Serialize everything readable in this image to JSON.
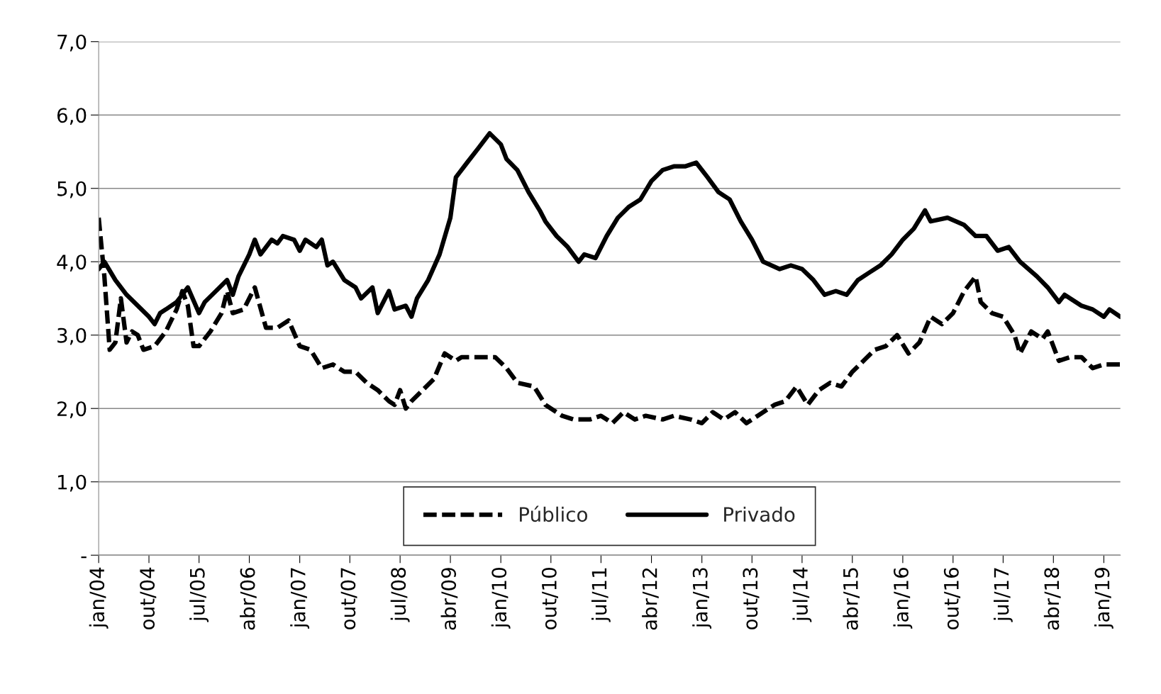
{
  "chart_data": {
    "type": "line",
    "ylim": [
      0,
      7
    ],
    "yticks": [
      {
        "value": 0,
        "label": "-"
      },
      {
        "value": 1,
        "label": "1,0"
      },
      {
        "value": 2,
        "label": "2,0"
      },
      {
        "value": 3,
        "label": "3,0"
      },
      {
        "value": 4,
        "label": "4,0"
      },
      {
        "value": 5,
        "label": "5,0"
      },
      {
        "value": 6,
        "label": "6,0"
      },
      {
        "value": 7,
        "label": "7,0"
      }
    ],
    "xlim": [
      "2004-01",
      "2019-04"
    ],
    "xticks": [
      {
        "value": "2004-01",
        "label": "jan/04"
      },
      {
        "value": "2004-10",
        "label": "out/04"
      },
      {
        "value": "2005-07",
        "label": "jul/05"
      },
      {
        "value": "2006-04",
        "label": "abr/06"
      },
      {
        "value": "2007-01",
        "label": "jan/07"
      },
      {
        "value": "2007-10",
        "label": "out/07"
      },
      {
        "value": "2008-07",
        "label": "jul/08"
      },
      {
        "value": "2009-04",
        "label": "abr/09"
      },
      {
        "value": "2010-01",
        "label": "jan/10"
      },
      {
        "value": "2010-10",
        "label": "out/10"
      },
      {
        "value": "2011-07",
        "label": "jul/11"
      },
      {
        "value": "2012-04",
        "label": "abr/12"
      },
      {
        "value": "2013-01",
        "label": "jan/13"
      },
      {
        "value": "2013-10",
        "label": "out/13"
      },
      {
        "value": "2014-07",
        "label": "jul/14"
      },
      {
        "value": "2015-04",
        "label": "abr/15"
      },
      {
        "value": "2016-01",
        "label": "jan/16"
      },
      {
        "value": "2016-10",
        "label": "out/16"
      },
      {
        "value": "2017-07",
        "label": "jul/17"
      },
      {
        "value": "2018-04",
        "label": "abr/18"
      },
      {
        "value": "2019-01",
        "label": "jan/19"
      }
    ],
    "grid": "y",
    "legend": "bottom",
    "marker": "none",
    "series": [
      {
        "name": "Público",
        "color": "#000000",
        "line_style": "dashed",
        "x": [
          "2004-01",
          "2004-02",
          "2004-03",
          "2004-04",
          "2004-05",
          "2004-06",
          "2004-07",
          "2004-08",
          "2004-09",
          "2004-11",
          "2005-01",
          "2005-03",
          "2005-04",
          "2005-05",
          "2005-06",
          "2005-07",
          "2005-09",
          "2005-11",
          "2005-12",
          "2006-01",
          "2006-03",
          "2006-05",
          "2006-07",
          "2006-09",
          "2006-11",
          "2007-01",
          "2007-03",
          "2007-05",
          "2007-07",
          "2007-09",
          "2007-11",
          "2008-01",
          "2008-03",
          "2008-05",
          "2008-06",
          "2008-07",
          "2008-08",
          "2008-09",
          "2008-11",
          "2009-01",
          "2009-03",
          "2009-05",
          "2009-06",
          "2009-09",
          "2009-12",
          "2010-02",
          "2010-04",
          "2010-07",
          "2010-09",
          "2010-12",
          "2011-02",
          "2011-05",
          "2011-07",
          "2011-09",
          "2011-11",
          "2012-01",
          "2012-03",
          "2012-06",
          "2012-08",
          "2012-11",
          "2013-01",
          "2013-03",
          "2013-05",
          "2013-07",
          "2013-09",
          "2013-11",
          "2014-02",
          "2014-04",
          "2014-06",
          "2014-08",
          "2014-10",
          "2014-12",
          "2015-02",
          "2015-04",
          "2015-06",
          "2015-08",
          "2015-10",
          "2015-12",
          "2016-02",
          "2016-04",
          "2016-06",
          "2016-08",
          "2016-10",
          "2016-12",
          "2017-02",
          "2017-03",
          "2017-05",
          "2017-07",
          "2017-09",
          "2017-10",
          "2017-12",
          "2018-02",
          "2018-03",
          "2018-05",
          "2018-07",
          "2018-09",
          "2018-11",
          "2019-01",
          "2019-04"
        ],
        "values": [
          4.6,
          3.8,
          2.8,
          2.9,
          3.5,
          2.9,
          3.05,
          3.0,
          2.8,
          2.85,
          3.05,
          3.35,
          3.6,
          3.4,
          2.85,
          2.85,
          3.05,
          3.3,
          3.6,
          3.3,
          3.35,
          3.65,
          3.1,
          3.1,
          3.2,
          2.85,
          2.8,
          2.55,
          2.6,
          2.5,
          2.5,
          2.35,
          2.25,
          2.1,
          2.05,
          2.25,
          2.0,
          2.1,
          2.25,
          2.4,
          2.75,
          2.65,
          2.7,
          2.7,
          2.7,
          2.55,
          2.35,
          2.3,
          2.05,
          1.9,
          1.85,
          1.85,
          1.9,
          1.8,
          1.95,
          1.85,
          1.9,
          1.85,
          1.9,
          1.85,
          1.8,
          1.95,
          1.85,
          1.95,
          1.8,
          1.9,
          2.05,
          2.1,
          2.3,
          2.05,
          2.25,
          2.35,
          2.3,
          2.5,
          2.65,
          2.8,
          2.85,
          3.0,
          2.75,
          2.9,
          3.25,
          3.15,
          3.3,
          3.6,
          3.8,
          3.45,
          3.3,
          3.25,
          3.0,
          2.75,
          3.05,
          2.95,
          3.05,
          2.65,
          2.7,
          2.7,
          2.55,
          2.6,
          2.6
        ]
      },
      {
        "name": "Privado",
        "color": "#000000",
        "line_style": "solid",
        "x": [
          "2004-01",
          "2004-02",
          "2004-04",
          "2004-06",
          "2004-08",
          "2004-10",
          "2004-11",
          "2004-12",
          "2005-01",
          "2005-03",
          "2005-05",
          "2005-07",
          "2005-08",
          "2005-10",
          "2005-12",
          "2006-01",
          "2006-02",
          "2006-04",
          "2006-05",
          "2006-06",
          "2006-08",
          "2006-09",
          "2006-10",
          "2006-12",
          "2007-01",
          "2007-02",
          "2007-04",
          "2007-05",
          "2007-06",
          "2007-07",
          "2007-09",
          "2007-11",
          "2007-12",
          "2008-02",
          "2008-03",
          "2008-05",
          "2008-06",
          "2008-08",
          "2008-09",
          "2008-10",
          "2008-12",
          "2009-02",
          "2009-04",
          "2009-05",
          "2009-07",
          "2009-09",
          "2009-11",
          "2010-01",
          "2010-02",
          "2010-04",
          "2010-06",
          "2010-08",
          "2010-09",
          "2010-11",
          "2011-01",
          "2011-03",
          "2011-04",
          "2011-06",
          "2011-08",
          "2011-10",
          "2011-12",
          "2012-02",
          "2012-04",
          "2012-06",
          "2012-08",
          "2012-10",
          "2012-12",
          "2013-02",
          "2013-04",
          "2013-06",
          "2013-08",
          "2013-10",
          "2013-12",
          "2014-03",
          "2014-05",
          "2014-07",
          "2014-09",
          "2014-11",
          "2015-01",
          "2015-03",
          "2015-05",
          "2015-07",
          "2015-09",
          "2015-11",
          "2016-01",
          "2016-03",
          "2016-05",
          "2016-06",
          "2016-09",
          "2016-12",
          "2017-02",
          "2017-04",
          "2017-06",
          "2017-08",
          "2017-10",
          "2018-01",
          "2018-03",
          "2018-05",
          "2018-06",
          "2018-09",
          "2018-11",
          "2019-01",
          "2019-02",
          "2019-04"
        ],
        "values": [
          3.9,
          4.0,
          3.75,
          3.55,
          3.4,
          3.25,
          3.15,
          3.3,
          3.35,
          3.45,
          3.65,
          3.3,
          3.45,
          3.6,
          3.75,
          3.55,
          3.8,
          4.1,
          4.3,
          4.1,
          4.3,
          4.25,
          4.35,
          4.3,
          4.15,
          4.3,
          4.2,
          4.3,
          3.95,
          4.0,
          3.75,
          3.65,
          3.5,
          3.65,
          3.3,
          3.6,
          3.35,
          3.4,
          3.25,
          3.5,
          3.75,
          4.1,
          4.6,
          5.15,
          5.35,
          5.55,
          5.75,
          5.6,
          5.4,
          5.25,
          4.95,
          4.7,
          4.55,
          4.35,
          4.2,
          4.0,
          4.1,
          4.05,
          4.35,
          4.6,
          4.75,
          4.85,
          5.1,
          5.25,
          5.3,
          5.3,
          5.35,
          5.15,
          4.95,
          4.85,
          4.55,
          4.3,
          4.0,
          3.9,
          3.95,
          3.9,
          3.75,
          3.55,
          3.6,
          3.55,
          3.75,
          3.85,
          3.95,
          4.1,
          4.3,
          4.45,
          4.7,
          4.55,
          4.6,
          4.5,
          4.35,
          4.35,
          4.15,
          4.2,
          4.0,
          3.8,
          3.65,
          3.45,
          3.55,
          3.4,
          3.35,
          3.25,
          3.35,
          3.25
        ]
      }
    ]
  }
}
